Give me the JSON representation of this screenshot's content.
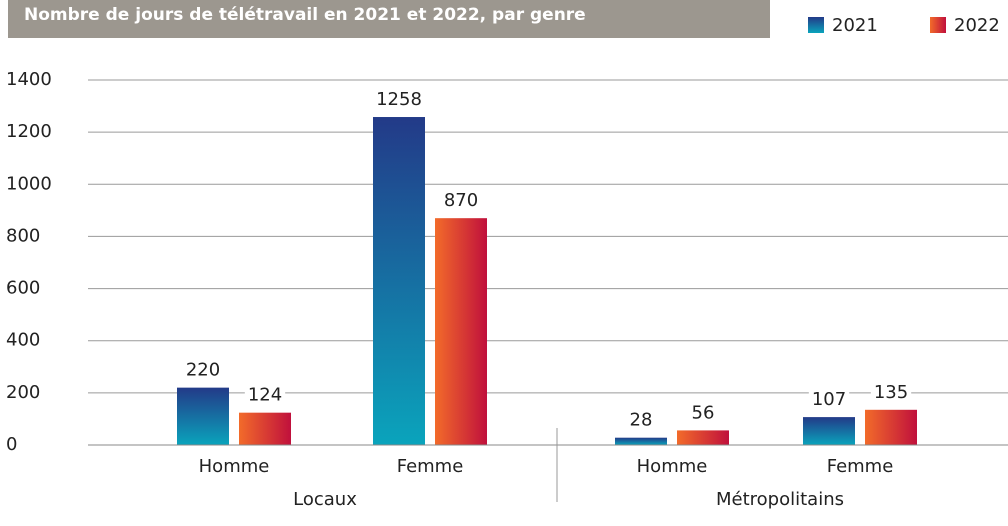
{
  "chart_data": {
    "type": "bar",
    "title": "Nombre de jours de télétravail en 2021 et 2022, par genre",
    "groups": [
      {
        "name": "Locaux",
        "categories": [
          "Homme",
          "Femme"
        ]
      },
      {
        "name": "Métropolitains",
        "categories": [
          "Homme",
          "Femme"
        ]
      }
    ],
    "series": [
      {
        "name": "2021",
        "color": [
          "#233a88",
          "#0aa4bc"
        ],
        "values": [
          220,
          1258,
          28,
          107
        ]
      },
      {
        "name": "2022",
        "color": [
          "#f26b2a",
          "#c0103c"
        ],
        "values": [
          124,
          870,
          56,
          135
        ]
      }
    ],
    "ylim": [
      0,
      1400
    ],
    "yticks": [
      0,
      200,
      400,
      600,
      800,
      1000,
      1200,
      1400
    ],
    "grid": true,
    "legend": "top-right"
  }
}
